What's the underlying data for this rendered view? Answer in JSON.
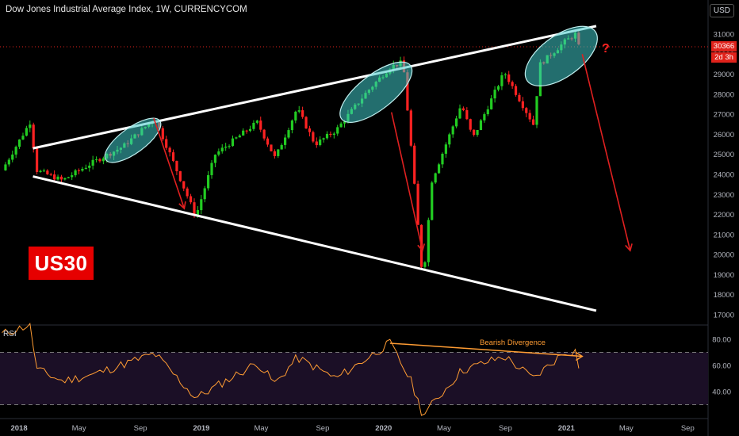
{
  "header": {
    "title": "Dow Jones Industrial Average Index, 1W, CURRENCYCOM",
    "currency": "USD"
  },
  "badge": {
    "symbol": "US30"
  },
  "price_tag": {
    "last": "30366",
    "countdown": "2d 3h"
  },
  "annotations": {
    "question_mark": "?",
    "bearish_divergence": "Bearish Divergence"
  },
  "rsi": {
    "label": "RSI",
    "levels": [
      "80.00",
      "60.00",
      "40.00"
    ]
  },
  "colors": {
    "up": "#22cc22",
    "down": "#ff2222",
    "rsi_line": "#ff9c33",
    "trendline": "#ffffff",
    "arrow": "#e02020",
    "ellipse": "#2aa198"
  },
  "chart_data": [
    {
      "type": "candlestick",
      "title": "Dow Jones Industrial Average Index, 1W, CURRENCYCOM",
      "interval": "1W",
      "y_axis_ticks": [
        31000,
        30000,
        29000,
        28000,
        27000,
        26000,
        25000,
        24000,
        23000,
        22000,
        21000,
        20000,
        19000,
        18000,
        17000
      ],
      "x_axis_ticks": [
        "2018",
        "May",
        "Sep",
        "2019",
        "May",
        "Sep",
        "2020",
        "May",
        "Sep",
        "2021",
        "May",
        "Sep"
      ],
      "ylim": [
        16700,
        31700
      ],
      "xlim": [
        "2017-11-27",
        "2021-10-15"
      ],
      "last_price": 30366,
      "closes_approx": [
        {
          "date": "2017-12-01",
          "close": 24200
        },
        {
          "date": "2018-01-26",
          "close": 26600
        },
        {
          "date": "2018-02-09",
          "close": 24200
        },
        {
          "date": "2018-04-01",
          "close": 23700
        },
        {
          "date": "2018-06-01",
          "close": 24600
        },
        {
          "date": "2018-08-01",
          "close": 25400
        },
        {
          "date": "2018-10-03",
          "close": 26800
        },
        {
          "date": "2018-11-01",
          "close": 25100
        },
        {
          "date": "2018-12-24",
          "close": 21900
        },
        {
          "date": "2019-02-01",
          "close": 25000
        },
        {
          "date": "2019-04-26",
          "close": 26600
        },
        {
          "date": "2019-06-01",
          "close": 24800
        },
        {
          "date": "2019-07-15",
          "close": 27300
        },
        {
          "date": "2019-08-20",
          "close": 25500
        },
        {
          "date": "2019-10-01",
          "close": 26200
        },
        {
          "date": "2019-12-01",
          "close": 28100
        },
        {
          "date": "2020-01-17",
          "close": 29350
        },
        {
          "date": "2020-02-12",
          "close": 29600
        },
        {
          "date": "2020-02-28",
          "close": 25400
        },
        {
          "date": "2020-03-23",
          "close": 18600
        },
        {
          "date": "2020-04-10",
          "close": 23700
        },
        {
          "date": "2020-06-08",
          "close": 27500
        },
        {
          "date": "2020-07-01",
          "close": 25800
        },
        {
          "date": "2020-09-02",
          "close": 29100
        },
        {
          "date": "2020-10-30",
          "close": 26500
        },
        {
          "date": "2020-11-13",
          "close": 29500
        },
        {
          "date": "2020-12-31",
          "close": 30600
        },
        {
          "date": "2021-01-22",
          "close": 31000
        },
        {
          "date": "2021-01-29",
          "close": 30366
        }
      ],
      "trendlines": [
        {
          "name": "upper",
          "from": {
            "date": "2018-02-01",
            "value": 25300
          },
          "to": {
            "date": "2021-03-05",
            "value": 31400
          }
        },
        {
          "name": "lower",
          "from": {
            "date": "2018-02-01",
            "value": 23900
          },
          "to": {
            "date": "2021-03-05",
            "value": 17200
          }
        }
      ],
      "arrows": [
        {
          "from": {
            "date": "2018-10-01",
            "value": 26800
          },
          "to": {
            "date": "2018-12-01",
            "value": 22300
          }
        },
        {
          "from": {
            "date": "2020-01-20",
            "value": 27100
          },
          "to": {
            "date": "2020-03-22",
            "value": 20200
          }
        },
        {
          "from": {
            "date": "2021-02-05",
            "value": 30000
          },
          "to": {
            "date": "2021-05-12",
            "value": 20200
          }
        }
      ]
    },
    {
      "type": "line",
      "title": "RSI",
      "y_axis_ticks": [
        80,
        60,
        40
      ],
      "bands": [
        70,
        30
      ],
      "ylim": [
        20,
        92
      ],
      "values_approx": [
        {
          "date": "2017-12-01",
          "value": 84
        },
        {
          "date": "2018-01-26",
          "value": 91
        },
        {
          "date": "2018-02-09",
          "value": 57
        },
        {
          "date": "2018-04-01",
          "value": 48
        },
        {
          "date": "2018-06-01",
          "value": 53
        },
        {
          "date": "2018-10-03",
          "value": 69
        },
        {
          "date": "2018-12-24",
          "value": 35
        },
        {
          "date": "2019-04-26",
          "value": 62
        },
        {
          "date": "2019-06-01",
          "value": 46
        },
        {
          "date": "2019-07-15",
          "value": 66
        },
        {
          "date": "2019-10-01",
          "value": 50
        },
        {
          "date": "2020-01-17",
          "value": 77
        },
        {
          "date": "2020-02-28",
          "value": 48
        },
        {
          "date": "2020-03-23",
          "value": 22
        },
        {
          "date": "2020-06-08",
          "value": 56
        },
        {
          "date": "2020-09-02",
          "value": 67
        },
        {
          "date": "2020-10-30",
          "value": 50
        },
        {
          "date": "2020-12-31",
          "value": 70
        },
        {
          "date": "2021-01-22",
          "value": 71
        },
        {
          "date": "2021-01-29",
          "value": 60
        }
      ],
      "divergence_line": {
        "from": {
          "date": "2020-01-17",
          "value": 77
        },
        "to": {
          "date": "2021-02-05",
          "value": 67
        }
      }
    }
  ]
}
